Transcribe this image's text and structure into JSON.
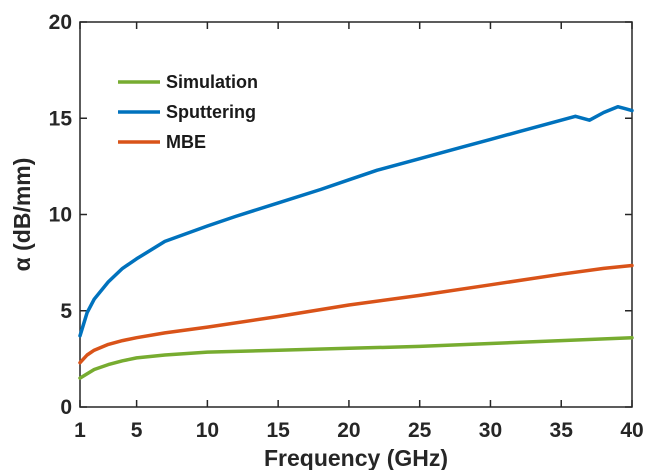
{
  "chart_data": {
    "type": "line",
    "xlabel": "Frequency (GHz)",
    "ylabel": "α (dB/mm)",
    "xlim": [
      1,
      40
    ],
    "ylim": [
      0,
      20
    ],
    "xticks": [
      1,
      5,
      10,
      15,
      20,
      25,
      30,
      35,
      40
    ],
    "yticks": [
      0,
      5,
      10,
      15,
      20
    ],
    "grid": false,
    "legend_position": "top-left",
    "series": [
      {
        "name": "Simulation",
        "color": "#77AC30",
        "x": [
          1,
          2,
          3,
          4,
          5,
          7,
          10,
          15,
          20,
          25,
          30,
          35,
          40
        ],
        "y": [
          1.5,
          1.95,
          2.2,
          2.4,
          2.55,
          2.7,
          2.85,
          2.95,
          3.05,
          3.15,
          3.3,
          3.45,
          3.6
        ]
      },
      {
        "name": "Sputtering",
        "color": "#0072BD",
        "x": [
          1,
          1.5,
          2,
          3,
          4,
          5,
          7,
          10,
          12,
          15,
          18,
          20,
          22,
          25,
          28,
          30,
          32,
          35,
          36,
          37,
          38,
          39,
          39.5,
          40
        ],
        "y": [
          3.7,
          4.9,
          5.6,
          6.5,
          7.2,
          7.7,
          8.6,
          9.4,
          9.9,
          10.6,
          11.3,
          11.8,
          12.3,
          12.9,
          13.5,
          13.9,
          14.3,
          14.9,
          15.1,
          14.9,
          15.3,
          15.6,
          15.5,
          15.4
        ]
      },
      {
        "name": "MBE",
        "color": "#D95319",
        "x": [
          1,
          1.5,
          2,
          3,
          4,
          5,
          7,
          10,
          15,
          20,
          25,
          30,
          35,
          38,
          40
        ],
        "y": [
          2.3,
          2.7,
          2.95,
          3.25,
          3.45,
          3.6,
          3.85,
          4.15,
          4.7,
          5.3,
          5.8,
          6.35,
          6.9,
          7.2,
          7.35
        ]
      }
    ]
  }
}
